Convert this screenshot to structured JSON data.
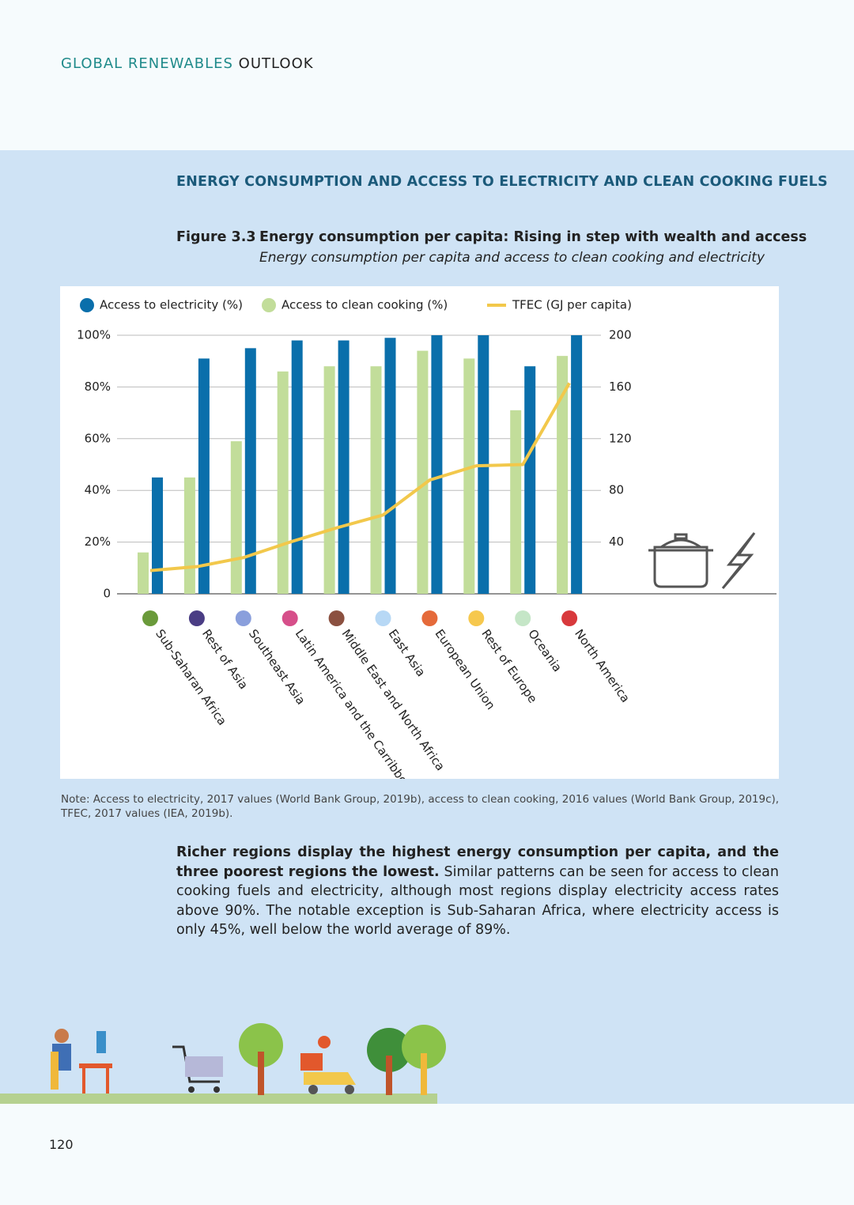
{
  "header": {
    "title_part1": "GLOBAL RENEWABLES",
    "title_part2": "OUTLOOK"
  },
  "section_title": "ENERGY CONSUMPTION AND ACCESS TO ELECTRICITY AND CLEAN COOKING FUELS",
  "figure": {
    "label": "Figure 3.3",
    "title": "Energy consumption per capita: Rising in step with wealth and access",
    "subtitle": "Energy consumption per capita and access to clean cooking and electricity"
  },
  "chart_data": {
    "type": "bar",
    "categories": [
      "Sub-Saharan Africa",
      "Rest of Asia",
      "Southeast Asia",
      "Latin America and the Carribbean",
      "Middle East and North Africa",
      "East Asia",
      "European Union",
      "Rest of Europe",
      "Oceania",
      "North America"
    ],
    "category_colors": [
      "#6a9a3a",
      "#4a3d84",
      "#8a9fdc",
      "#d64f8a",
      "#8b5040",
      "#b7d8f5",
      "#e56a3a",
      "#f6c84e",
      "#c5e6c7",
      "#d8393c"
    ],
    "series": [
      {
        "name": "Access to clean cooking (%)",
        "type": "bar",
        "color": "#c2dd9a",
        "values": [
          16,
          45,
          59,
          86,
          88,
          88,
          94,
          91,
          71,
          92
        ]
      },
      {
        "name": "Access to electricity (%)",
        "type": "bar",
        "color": "#0a6fab",
        "values": [
          45,
          91,
          95,
          98,
          98,
          99,
          100,
          100,
          88,
          100
        ]
      },
      {
        "name": "TFEC (GJ per capita)",
        "type": "line",
        "axis": "y2",
        "color": "#f2c84b",
        "values": [
          18,
          21,
          28,
          40,
          51,
          61,
          88,
          99,
          100,
          163
        ]
      }
    ],
    "legend_order": [
      1,
      0,
      2
    ],
    "ylim": [
      0,
      100
    ],
    "yticks": [
      0,
      {
        "value": 20,
        "label": "20%"
      },
      {
        "value": 40,
        "label": "40%"
      },
      {
        "value": 60,
        "label": "60%"
      },
      {
        "value": 80,
        "label": "80%"
      },
      {
        "value": 100,
        "label": "100%"
      }
    ],
    "y2lim": [
      0,
      200
    ],
    "y2ticks": [
      40,
      80,
      120,
      160,
      200
    ],
    "grid": true
  },
  "note": {
    "line1": "Note: Access to electricity, 2017 values (World Bank Group, 2019b), access to clean cooking, 2016 values (World Bank Group, 2019c),",
    "line2": "TFEC, 2017 values (IEA, 2019b)."
  },
  "body": {
    "bold": "Richer regions display the highest energy consumption per capita, and the three poorest regions the lowest.",
    "text": "Similar patterns can be seen for access to clean cooking fuels and electricity, although most regions display electricity access rates above 90%. The notable exception is Sub-Saharan Africa, where electricity access is only 45%, well below the world average of 89%."
  },
  "page_number": "120"
}
